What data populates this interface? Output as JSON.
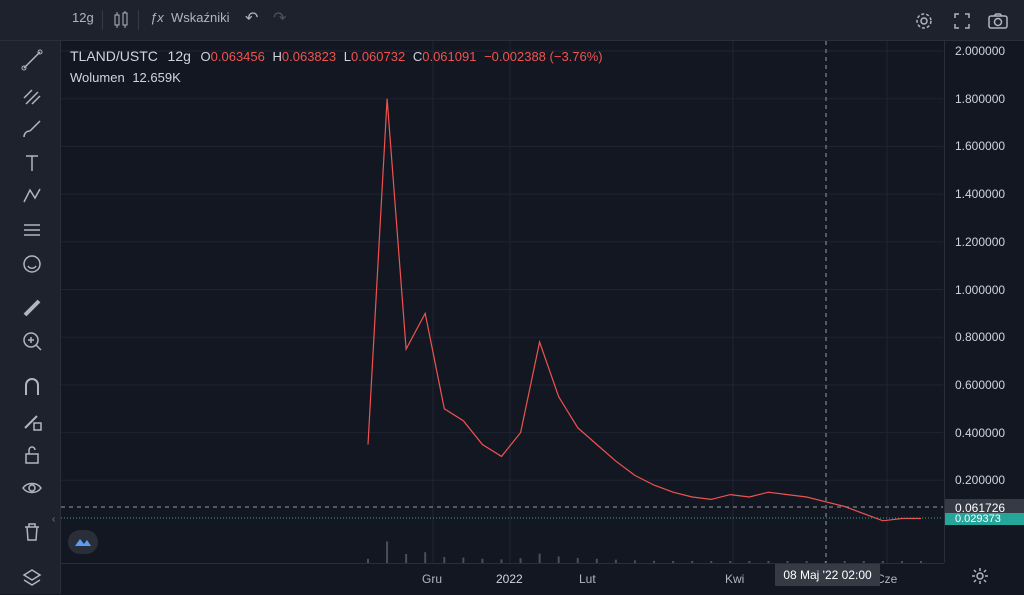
{
  "toolbar": {
    "interval": "12g",
    "indicators_label": "Wskaźniki",
    "icons": [
      "crosshair-icon",
      "candles-icon",
      "fx-icon",
      "undo-icon",
      "redo-icon",
      "settings-icon",
      "fullscreen-icon",
      "camera-icon"
    ]
  },
  "legend": {
    "symbol": "TLAND/USTC",
    "interval": "12g",
    "open_label": "O",
    "open": "0.063456",
    "high_label": "H",
    "high": "0.063823",
    "low_label": "L",
    "low": "0.060732",
    "close_label": "C",
    "close": "0.061091",
    "change": "−0.002388 (−3.76%)"
  },
  "volume": {
    "label": "Wolumen",
    "value": "12.659K"
  },
  "price_axis": {
    "ticks": [
      "2.000000",
      "1.800000",
      "1.600000",
      "1.400000",
      "1.200000",
      "1.000000",
      "0.800000",
      "0.600000",
      "0.400000",
      "0.200000"
    ],
    "cursor_price": "0.061726",
    "last_price": "0.029373"
  },
  "time_axis": {
    "labels": [
      "Gru",
      "2022",
      "Lut",
      "Kwi",
      "Cze"
    ],
    "cursor_time": "08 Maj '22   02:00"
  },
  "colors": {
    "up": "#26a69a",
    "down": "#ef5350",
    "background": "#131722",
    "grid": "#1f2433"
  },
  "chart_data": {
    "type": "line",
    "title": "",
    "xlabel": "",
    "ylabel": "",
    "ylim": [
      0,
      2.0
    ],
    "x_ticks": [
      "Gru",
      "2022",
      "Lut",
      "Kwi",
      "Cze"
    ],
    "series": [
      {
        "values": [
          0.35,
          1.8,
          0.75,
          0.9,
          0.5,
          0.45,
          0.35,
          0.3,
          0.4,
          0.78,
          0.55,
          0.42,
          0.35,
          0.28,
          0.22,
          0.18,
          0.15,
          0.13,
          0.12,
          0.14,
          0.13,
          0.15,
          0.14,
          0.13,
          0.11,
          0.09,
          0.06,
          0.03,
          0.04,
          0.04
        ]
      }
    ]
  }
}
